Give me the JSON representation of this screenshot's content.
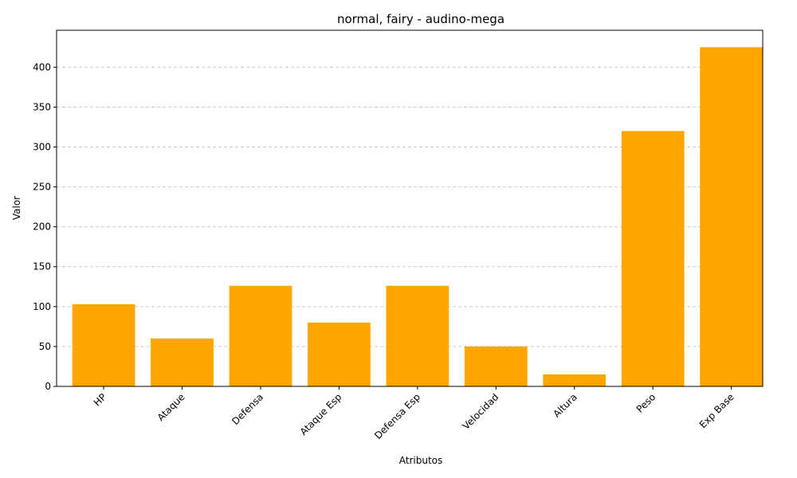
{
  "chart_data": {
    "type": "bar",
    "title": "normal, fairy - audino-mega",
    "xlabel": "Atributos",
    "ylabel": "Valor",
    "categories": [
      "HP",
      "Ataque",
      "Defensa",
      "Ataque Esp",
      "Defensa Esp",
      "Velocidad",
      "Altura",
      "Peso",
      "Exp Base"
    ],
    "values": [
      103,
      60,
      126,
      80,
      126,
      50,
      15,
      320,
      425
    ],
    "ylim": [
      0,
      446.25
    ],
    "yticks": [
      0,
      50,
      100,
      150,
      200,
      250,
      300,
      350,
      400
    ],
    "ytick_labels": [
      "0",
      "50",
      "100",
      "150",
      "200",
      "250",
      "300",
      "350",
      "400"
    ],
    "grid": "y-dashed",
    "bar_color": "#ffa500",
    "grid_color": "#cccccc"
  }
}
